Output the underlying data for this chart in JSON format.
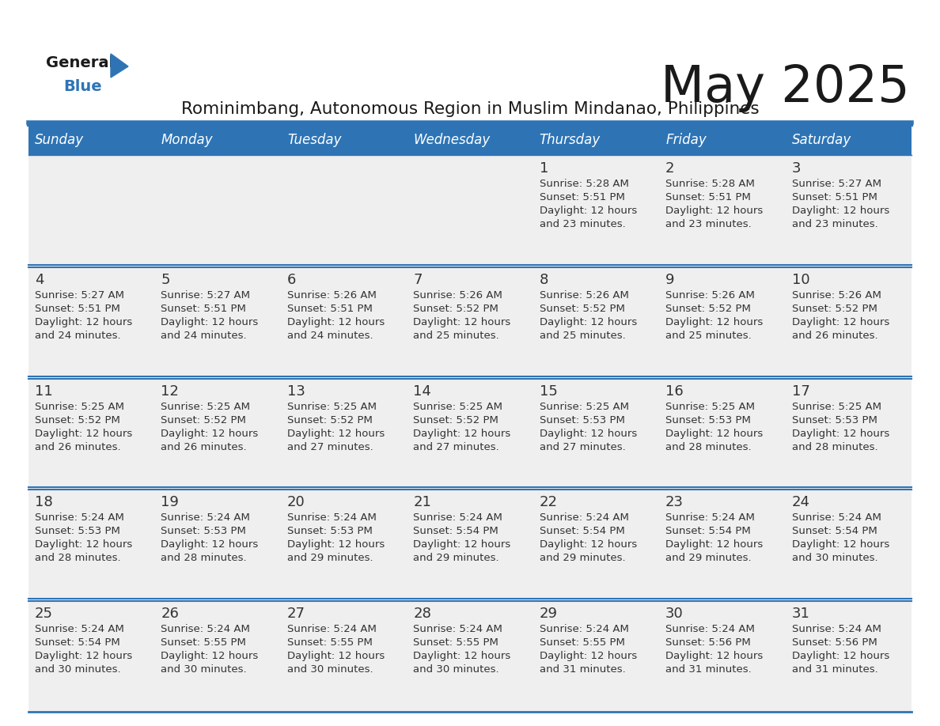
{
  "title": "May 2025",
  "subtitle": "Rominimbang, Autonomous Region in Muslim Mindanao, Philippines",
  "days_of_week": [
    "Sunday",
    "Monday",
    "Tuesday",
    "Wednesday",
    "Thursday",
    "Friday",
    "Saturday"
  ],
  "header_bg": "#2E74B5",
  "header_text": "#FFFFFF",
  "row_bg": "#EFEFEF",
  "divider_color": "#2E74B5",
  "text_color": "#333333",
  "title_color": "#1a1a1a",
  "calendar_data": [
    [
      null,
      null,
      null,
      null,
      {
        "day": 1,
        "sunrise": "5:28 AM",
        "sunset": "5:51 PM",
        "daylight": "12 hours and 23 minutes"
      },
      {
        "day": 2,
        "sunrise": "5:28 AM",
        "sunset": "5:51 PM",
        "daylight": "12 hours and 23 minutes"
      },
      {
        "day": 3,
        "sunrise": "5:27 AM",
        "sunset": "5:51 PM",
        "daylight": "12 hours and 23 minutes"
      }
    ],
    [
      {
        "day": 4,
        "sunrise": "5:27 AM",
        "sunset": "5:51 PM",
        "daylight": "12 hours and 24 minutes"
      },
      {
        "day": 5,
        "sunrise": "5:27 AM",
        "sunset": "5:51 PM",
        "daylight": "12 hours and 24 minutes"
      },
      {
        "day": 6,
        "sunrise": "5:26 AM",
        "sunset": "5:51 PM",
        "daylight": "12 hours and 24 minutes"
      },
      {
        "day": 7,
        "sunrise": "5:26 AM",
        "sunset": "5:52 PM",
        "daylight": "12 hours and 25 minutes"
      },
      {
        "day": 8,
        "sunrise": "5:26 AM",
        "sunset": "5:52 PM",
        "daylight": "12 hours and 25 minutes"
      },
      {
        "day": 9,
        "sunrise": "5:26 AM",
        "sunset": "5:52 PM",
        "daylight": "12 hours and 25 minutes"
      },
      {
        "day": 10,
        "sunrise": "5:26 AM",
        "sunset": "5:52 PM",
        "daylight": "12 hours and 26 minutes"
      }
    ],
    [
      {
        "day": 11,
        "sunrise": "5:25 AM",
        "sunset": "5:52 PM",
        "daylight": "12 hours and 26 minutes"
      },
      {
        "day": 12,
        "sunrise": "5:25 AM",
        "sunset": "5:52 PM",
        "daylight": "12 hours and 26 minutes"
      },
      {
        "day": 13,
        "sunrise": "5:25 AM",
        "sunset": "5:52 PM",
        "daylight": "12 hours and 27 minutes"
      },
      {
        "day": 14,
        "sunrise": "5:25 AM",
        "sunset": "5:52 PM",
        "daylight": "12 hours and 27 minutes"
      },
      {
        "day": 15,
        "sunrise": "5:25 AM",
        "sunset": "5:53 PM",
        "daylight": "12 hours and 27 minutes"
      },
      {
        "day": 16,
        "sunrise": "5:25 AM",
        "sunset": "5:53 PM",
        "daylight": "12 hours and 28 minutes"
      },
      {
        "day": 17,
        "sunrise": "5:25 AM",
        "sunset": "5:53 PM",
        "daylight": "12 hours and 28 minutes"
      }
    ],
    [
      {
        "day": 18,
        "sunrise": "5:24 AM",
        "sunset": "5:53 PM",
        "daylight": "12 hours and 28 minutes"
      },
      {
        "day": 19,
        "sunrise": "5:24 AM",
        "sunset": "5:53 PM",
        "daylight": "12 hours and 28 minutes"
      },
      {
        "day": 20,
        "sunrise": "5:24 AM",
        "sunset": "5:53 PM",
        "daylight": "12 hours and 29 minutes"
      },
      {
        "day": 21,
        "sunrise": "5:24 AM",
        "sunset": "5:54 PM",
        "daylight": "12 hours and 29 minutes"
      },
      {
        "day": 22,
        "sunrise": "5:24 AM",
        "sunset": "5:54 PM",
        "daylight": "12 hours and 29 minutes"
      },
      {
        "day": 23,
        "sunrise": "5:24 AM",
        "sunset": "5:54 PM",
        "daylight": "12 hours and 29 minutes"
      },
      {
        "day": 24,
        "sunrise": "5:24 AM",
        "sunset": "5:54 PM",
        "daylight": "12 hours and 30 minutes"
      }
    ],
    [
      {
        "day": 25,
        "sunrise": "5:24 AM",
        "sunset": "5:54 PM",
        "daylight": "12 hours and 30 minutes"
      },
      {
        "day": 26,
        "sunrise": "5:24 AM",
        "sunset": "5:55 PM",
        "daylight": "12 hours and 30 minutes"
      },
      {
        "day": 27,
        "sunrise": "5:24 AM",
        "sunset": "5:55 PM",
        "daylight": "12 hours and 30 minutes"
      },
      {
        "day": 28,
        "sunrise": "5:24 AM",
        "sunset": "5:55 PM",
        "daylight": "12 hours and 30 minutes"
      },
      {
        "day": 29,
        "sunrise": "5:24 AM",
        "sunset": "5:55 PM",
        "daylight": "12 hours and 31 minutes"
      },
      {
        "day": 30,
        "sunrise": "5:24 AM",
        "sunset": "5:56 PM",
        "daylight": "12 hours and 31 minutes"
      },
      {
        "day": 31,
        "sunrise": "5:24 AM",
        "sunset": "5:56 PM",
        "daylight": "12 hours and 31 minutes"
      }
    ]
  ]
}
